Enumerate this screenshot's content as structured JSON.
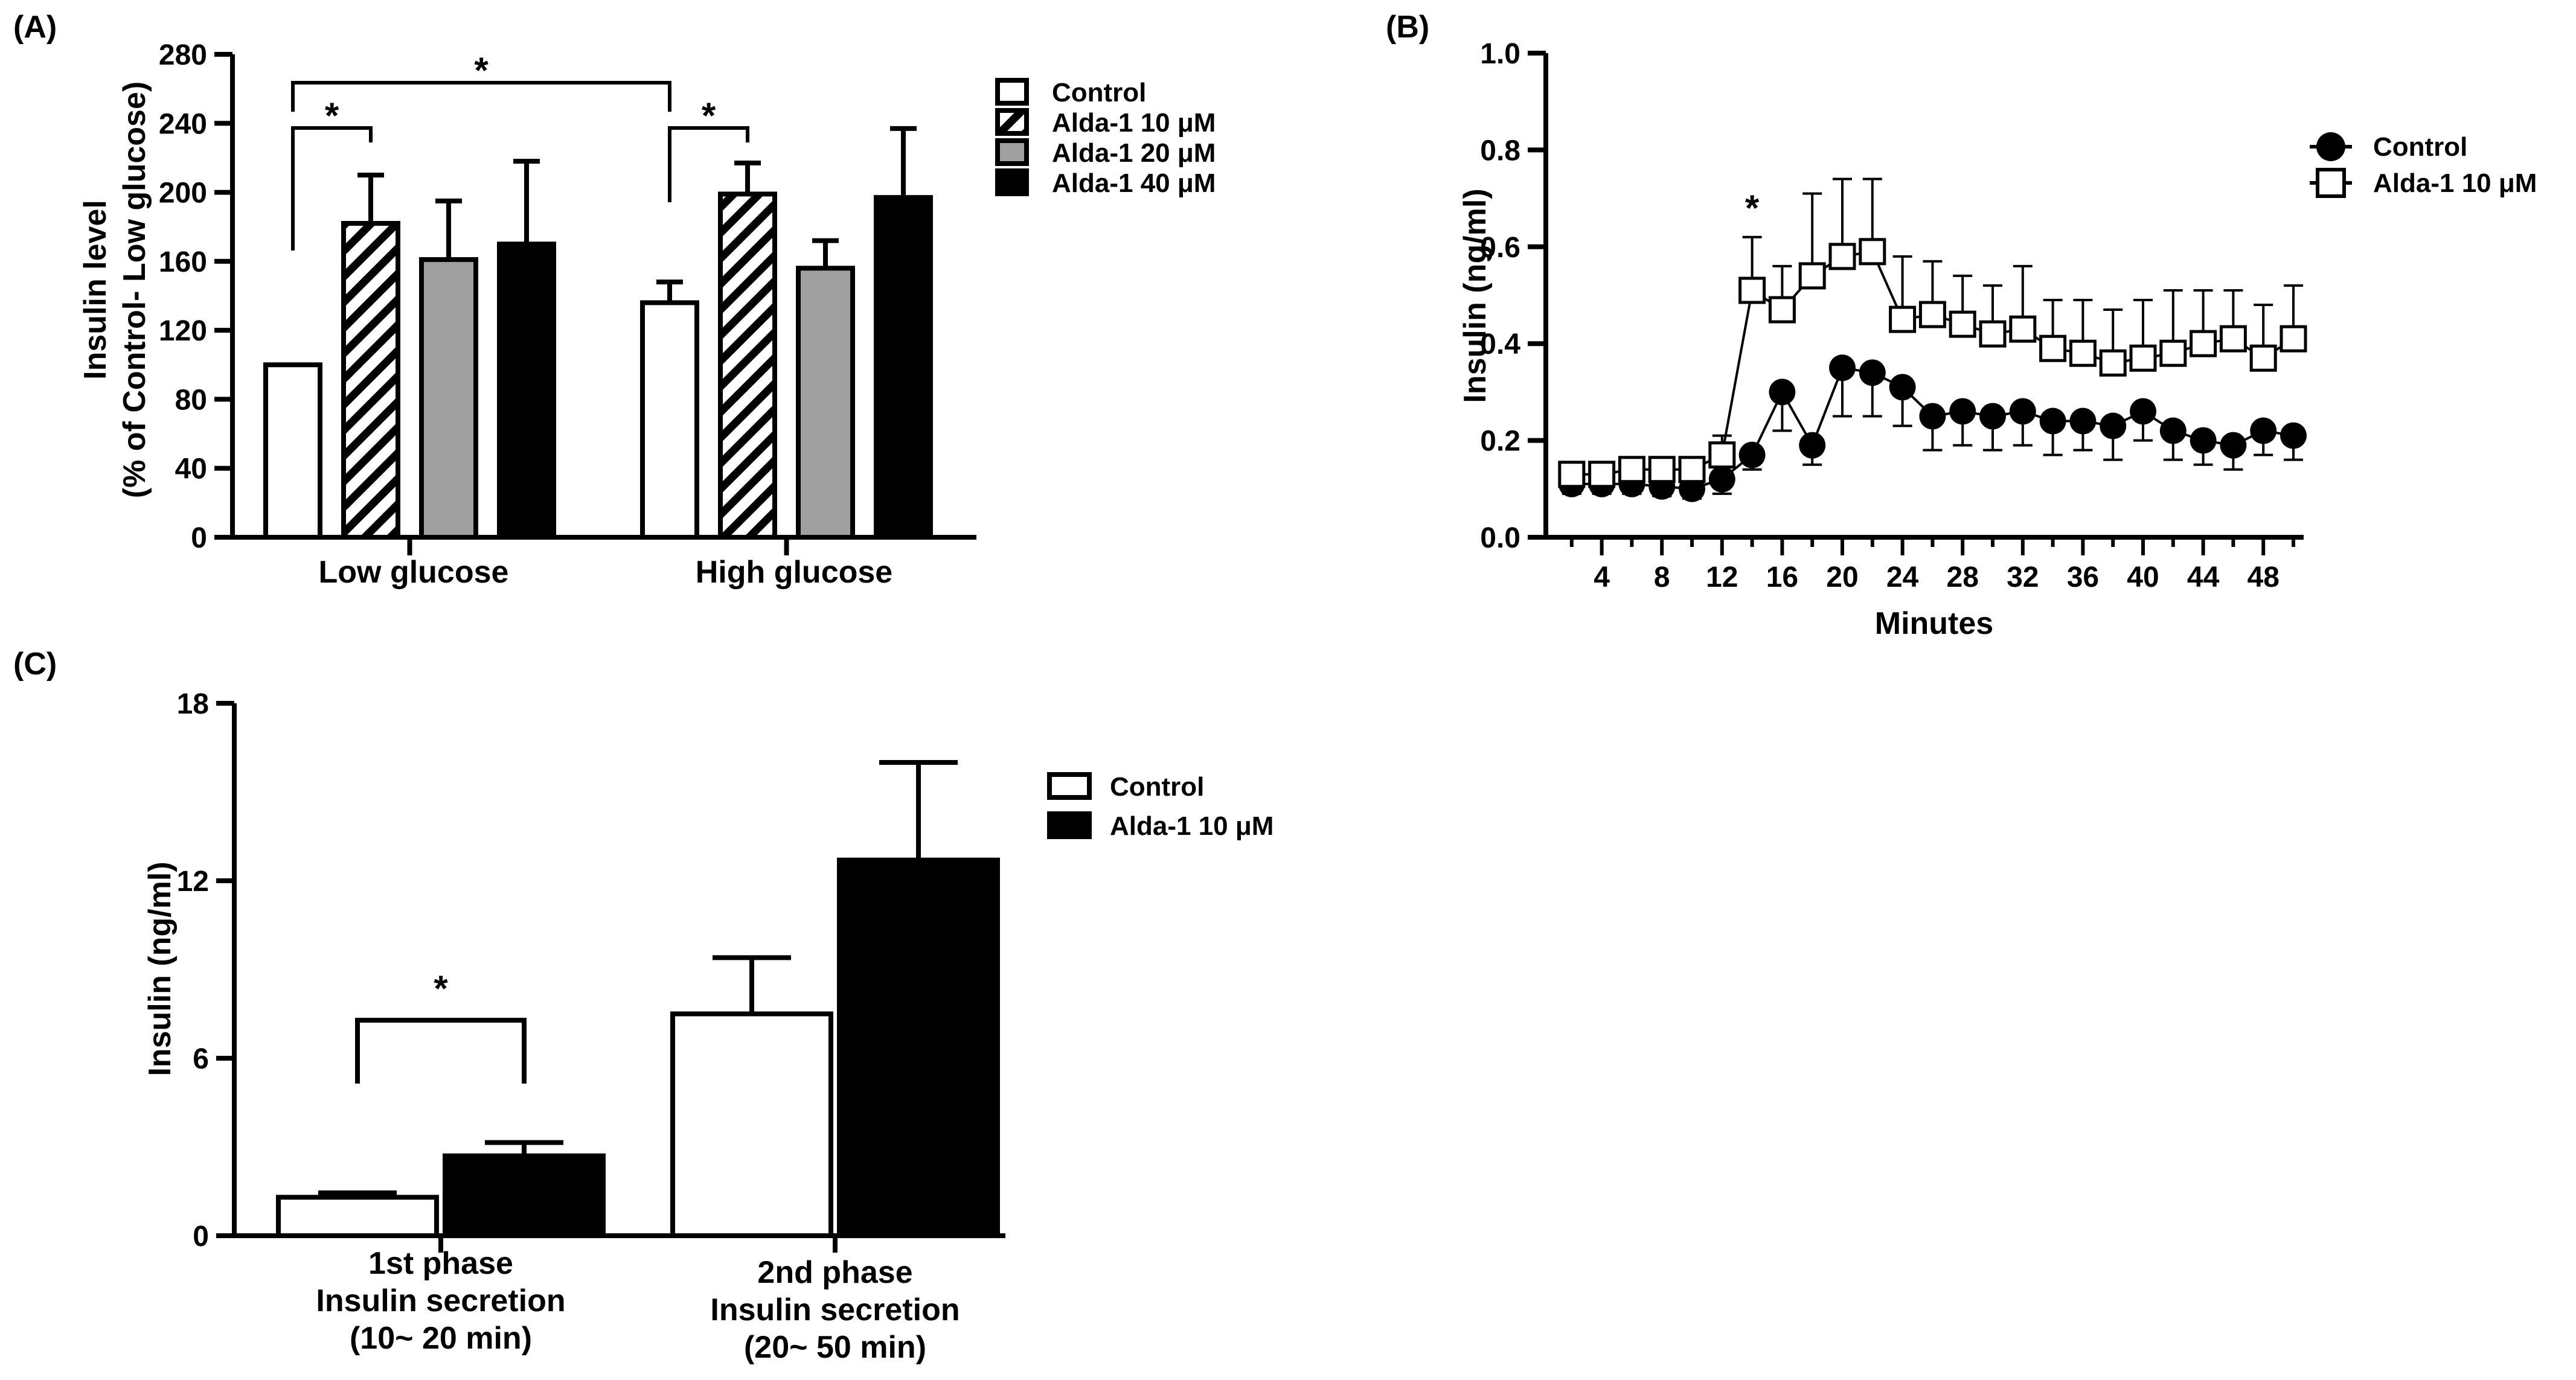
{
  "chart_data": [
    {
      "panel": "(A)",
      "type": "bar",
      "ylabel_line1": "Insulin level",
      "ylabel_line2": "(% of Control- Low glucose)",
      "ylim": [
        0,
        280
      ],
      "yticks": [
        0,
        40,
        80,
        120,
        160,
        200,
        240,
        280
      ],
      "groups": [
        "Low glucose",
        "High glucose"
      ],
      "legend_position": "top-right",
      "series": [
        {
          "name": "Control",
          "fill": "white",
          "values": [
            100,
            136
          ],
          "errors": [
            0,
            12
          ]
        },
        {
          "name": "Alda-1 10 μM",
          "fill": "hatch",
          "values": [
            182,
            199
          ],
          "errors": [
            28,
            18
          ]
        },
        {
          "name": "Alda-1 20 μM",
          "fill": "gray",
          "values": [
            161,
            156
          ],
          "errors": [
            34,
            16
          ]
        },
        {
          "name": "Alda-1 40 μM",
          "fill": "black",
          "values": [
            170,
            197
          ],
          "errors": [
            48,
            40
          ]
        }
      ],
      "annotations": [
        {
          "text": "*",
          "between": [
            "Low glucose: Control",
            "Low glucose: Alda-1 10 μM"
          ]
        },
        {
          "text": "*",
          "between": [
            "High glucose: Control",
            "High glucose: Alda-1 10 μM"
          ]
        },
        {
          "text": "*",
          "between": [
            "Low glucose: Control",
            "High glucose: Control"
          ]
        }
      ]
    },
    {
      "panel": "(B)",
      "type": "line",
      "xlabel": "Minutes",
      "ylabel": "Insulin (ng/ml)",
      "ylim": [
        0.0,
        1.0
      ],
      "yticks": [
        "0.0",
        "0.2",
        "0.4",
        "0.6",
        "0.8",
        "1.0"
      ],
      "xlim": [
        0,
        50
      ],
      "xticks": [
        4,
        8,
        12,
        16,
        20,
        24,
        28,
        32,
        36,
        40,
        44,
        48
      ],
      "x": [
        2,
        4,
        6,
        8,
        10,
        12,
        14,
        16,
        18,
        20,
        22,
        24,
        26,
        28,
        30,
        32,
        34,
        36,
        38,
        40,
        42,
        44,
        46,
        48,
        50
      ],
      "legend_position": "top-right",
      "series": [
        {
          "name": "Control",
          "marker": "filled-circle",
          "values": [
            0.11,
            0.11,
            0.11,
            0.105,
            0.1,
            0.12,
            0.17,
            0.3,
            0.19,
            0.35,
            0.34,
            0.31,
            0.25,
            0.26,
            0.25,
            0.26,
            0.24,
            0.24,
            0.23,
            0.26,
            0.22,
            0.2,
            0.19,
            0.22,
            0.21
          ],
          "errors": [
            0.02,
            0.02,
            0.02,
            0.02,
            0.02,
            0.03,
            0.03,
            0.08,
            0.04,
            0.1,
            0.09,
            0.08,
            0.07,
            0.07,
            0.07,
            0.07,
            0.07,
            0.06,
            0.07,
            0.06,
            0.06,
            0.05,
            0.05,
            0.05,
            0.05
          ]
        },
        {
          "name": "Alda-1 10 μM",
          "marker": "open-square",
          "values": [
            0.13,
            0.13,
            0.14,
            0.14,
            0.14,
            0.17,
            0.51,
            0.47,
            0.54,
            0.58,
            0.59,
            0.45,
            0.46,
            0.44,
            0.42,
            0.43,
            0.39,
            0.38,
            0.36,
            0.37,
            0.38,
            0.4,
            0.41,
            0.37,
            0.41
          ],
          "errors": [
            0.02,
            0.02,
            0.02,
            0.02,
            0.02,
            0.04,
            0.11,
            0.09,
            0.17,
            0.16,
            0.15,
            0.13,
            0.11,
            0.1,
            0.1,
            0.13,
            0.1,
            0.11,
            0.11,
            0.12,
            0.13,
            0.11,
            0.1,
            0.11,
            0.11
          ]
        }
      ],
      "annotations": [
        {
          "text": "*",
          "x": 14
        }
      ]
    },
    {
      "panel": "(C)",
      "type": "bar",
      "ylabel": "Insulin (ng/ml)",
      "ylim": [
        0,
        18
      ],
      "yticks": [
        0,
        6,
        12,
        18
      ],
      "categories": [
        [
          "1st phase",
          "Insulin secretion",
          "(10~ 20 min)"
        ],
        [
          "2nd phase",
          "Insulin secretion",
          "(20~ 50 min)"
        ]
      ],
      "legend_position": "top-right",
      "series": [
        {
          "name": "Control",
          "fill": "white",
          "values": [
            1.3,
            7.5
          ],
          "errors": [
            0.15,
            1.9
          ]
        },
        {
          "name": "Alda-1 10 μM",
          "fill": "black",
          "values": [
            2.7,
            12.7
          ],
          "errors": [
            0.45,
            3.3
          ]
        }
      ],
      "annotations": [
        {
          "text": "*",
          "between": [
            "1st phase: Control",
            "1st phase: Alda-1 10 μM"
          ]
        }
      ]
    }
  ]
}
